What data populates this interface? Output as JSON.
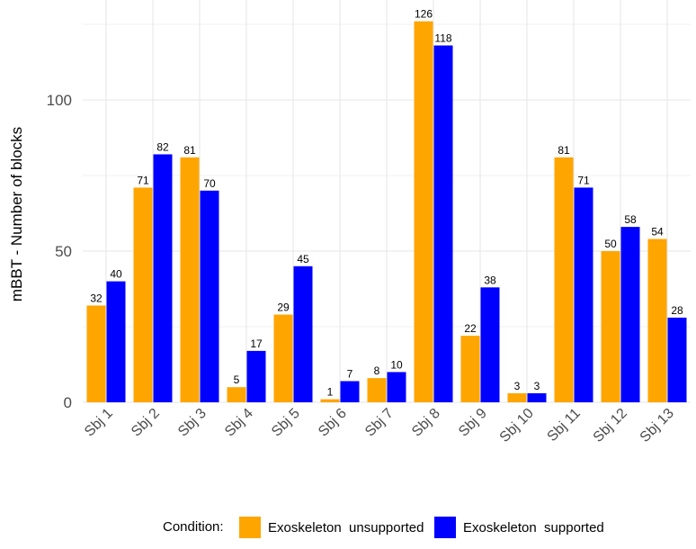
{
  "chart_data": {
    "type": "bar",
    "title": "",
    "xlabel": "",
    "ylabel": "mBBT - Number of blocks",
    "ylim": [
      0,
      130
    ],
    "yticks": [
      0,
      50,
      100
    ],
    "grid": true,
    "legend_position": "bottom",
    "categories": [
      "Sbj 1",
      "Sbj 2",
      "Sbj 3",
      "Sbj 4",
      "Sbj 5",
      "Sbj 6",
      "Sbj 7",
      "Sbj 8",
      "Sbj 9",
      "Sbj 10",
      "Sbj 11",
      "Sbj 12",
      "Sbj 13"
    ],
    "legend_title": "Condition:",
    "series": [
      {
        "name": "Exoskeleton  unsupported",
        "color": "#FFA500",
        "values": [
          32,
          71,
          81,
          5,
          29,
          1,
          8,
          126,
          22,
          3,
          81,
          50,
          54
        ]
      },
      {
        "name": "Exoskeleton  supported",
        "color": "#0000FF",
        "values": [
          40,
          82,
          70,
          17,
          45,
          7,
          10,
          118,
          38,
          3,
          71,
          58,
          28
        ]
      }
    ]
  }
}
